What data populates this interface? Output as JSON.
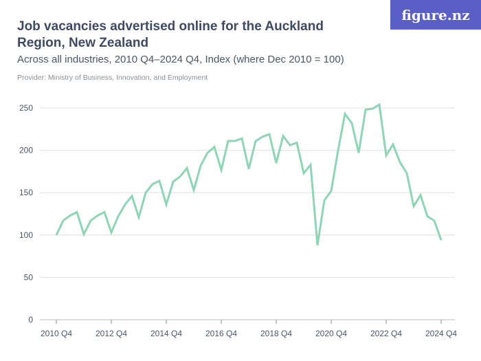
{
  "header": {
    "title": "Job vacancies advertised online for the Auckland Region, New Zealand",
    "subtitle": "Across all industries, 2010 Q4–2024 Q4, Index (where Dec 2010 = 100)",
    "provider": "Provider: Ministry of Business, Innovation, and Employment",
    "logo": "figure.nz"
  },
  "colors": {
    "line": "#8dd5b5",
    "logo_bg": "#5a5fc8",
    "grid": "#e0e0e0"
  },
  "chart_data": {
    "type": "line",
    "title": "Job vacancies advertised online for the Auckland Region, New Zealand",
    "x_start": "2010 Q4",
    "x_end": "2024 Q4",
    "x_frequency": "quarterly",
    "x_tick_labels": [
      "2010 Q4",
      "2012 Q4",
      "2014 Q4",
      "2016 Q4",
      "2018 Q4",
      "2020 Q4",
      "2022 Q4",
      "2024 Q4"
    ],
    "y_tick_labels": [
      "0",
      "50",
      "100",
      "150",
      "200",
      "250"
    ],
    "ylim": [
      0,
      250
    ],
    "grid": true,
    "values": [
      100,
      117,
      123,
      127,
      101,
      117,
      123,
      127,
      103,
      122,
      136,
      146,
      121,
      150,
      160,
      164,
      136,
      163,
      169,
      179,
      153,
      182,
      197,
      204,
      177,
      211,
      211,
      214,
      178,
      211,
      216,
      219,
      185,
      217,
      206,
      209,
      173,
      183,
      88,
      141,
      152,
      200,
      243,
      232,
      197,
      248,
      249,
      254,
      194,
      207,
      186,
      173,
      134,
      147,
      122,
      117,
      94
    ]
  }
}
